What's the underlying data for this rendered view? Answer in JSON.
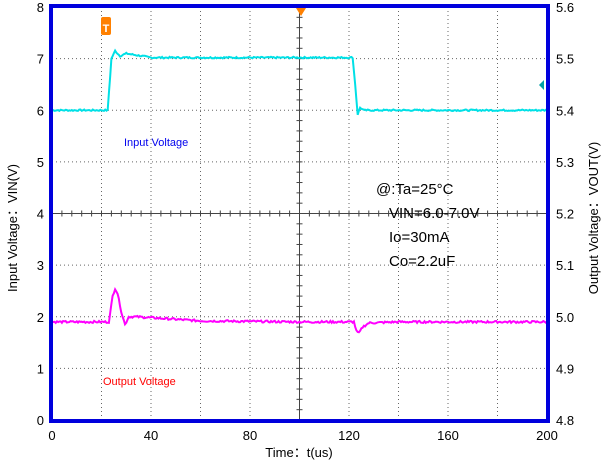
{
  "chart_data": {
    "type": "line",
    "x": {
      "label": "Time：t(us)",
      "lim": [
        0,
        200
      ],
      "ticks": [
        "0",
        "40",
        "80",
        "120",
        "160",
        "200"
      ],
      "tick_values": [
        0,
        40,
        80,
        120,
        160,
        200
      ]
    },
    "y_left": {
      "label": "Input Voltage：VIN(V)",
      "lim": [
        0,
        8
      ],
      "ticks": [
        "0",
        "1",
        "2",
        "3",
        "4",
        "5",
        "6",
        "7",
        "8"
      ],
      "tick_values": [
        0,
        1,
        2,
        3,
        4,
        5,
        6,
        7,
        8
      ]
    },
    "y_right": {
      "label": "Output Voltage：VOUT(V)",
      "lim": [
        4.8,
        5.6
      ],
      "ticks": [
        "4.8",
        "4.9",
        "5.0",
        "5.1",
        "5.2",
        "5.3",
        "5.4",
        "5.5",
        "5.6"
      ],
      "tick_values": [
        4.8,
        4.9,
        5.0,
        5.1,
        5.2,
        5.3,
        5.4,
        5.5,
        5.6
      ]
    },
    "grid": true,
    "series": [
      {
        "name": "Input Voltage",
        "axis": "left",
        "color": "#00e0e6",
        "points": [
          [
            0,
            6.0
          ],
          [
            22.5,
            6.0
          ],
          [
            24.0,
            7.0
          ],
          [
            25.5,
            7.15
          ],
          [
            27.5,
            7.05
          ],
          [
            30,
            7.1
          ],
          [
            40,
            7.02
          ],
          [
            80,
            7.02
          ],
          [
            121.5,
            7.02
          ],
          [
            122.5,
            6.5
          ],
          [
            123.5,
            5.92
          ],
          [
            124.5,
            6.05
          ],
          [
            126,
            6.0
          ],
          [
            205,
            6.0
          ]
        ]
      },
      {
        "name": "Output Voltage",
        "axis": "right",
        "color": "#ff00ff",
        "points": [
          [
            0,
            4.99
          ],
          [
            23,
            4.99
          ],
          [
            24.5,
            5.04
          ],
          [
            25.5,
            5.055
          ],
          [
            26.5,
            5.045
          ],
          [
            28,
            5.01
          ],
          [
            29.5,
            4.985
          ],
          [
            31,
            5.0
          ],
          [
            34,
            5.0
          ],
          [
            60,
            4.992
          ],
          [
            100,
            4.99
          ],
          [
            122,
            4.99
          ],
          [
            123,
            4.972
          ],
          [
            124,
            4.968
          ],
          [
            125.5,
            4.98
          ],
          [
            128,
            4.988
          ],
          [
            140,
            4.99
          ],
          [
            205,
            4.99
          ]
        ]
      }
    ],
    "annotations": [
      "@:Ta=25°C",
      "VIN=6.0-7.0V",
      "Io=30mA",
      "Co=2.2uF"
    ],
    "markers": {
      "left_marker": "T",
      "colors": {
        "frame": "#0000dd",
        "trigger": "#ff8000",
        "grid": "#666666"
      }
    }
  }
}
